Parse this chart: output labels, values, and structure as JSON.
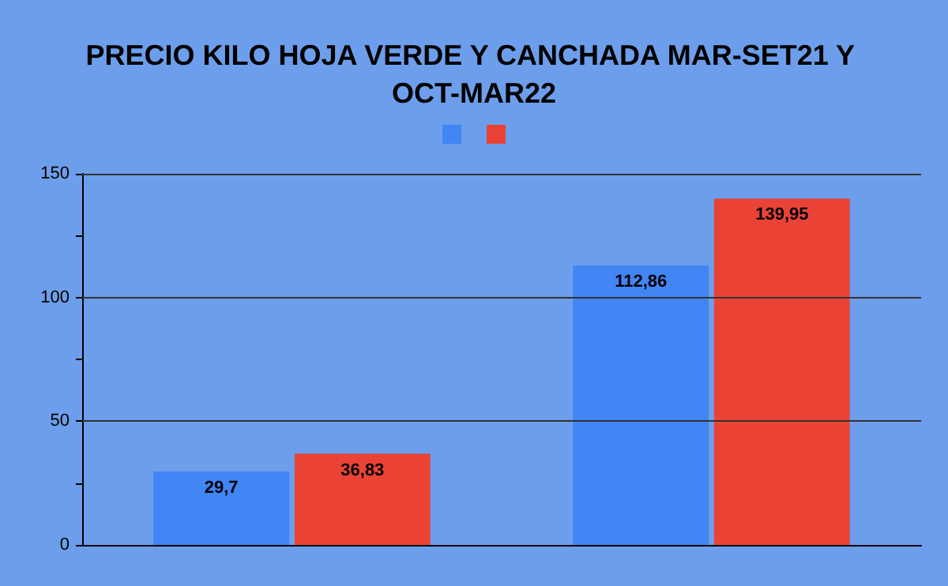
{
  "chart_data": {
    "type": "bar",
    "title": "PRECIO KILO HOJA VERDE Y CANCHADA MAR-SET21 Y OCT-MAR22",
    "categories": [
      null,
      null
    ],
    "series": [
      {
        "color": "#4285f4",
        "values": [
          29.7,
          112.86
        ],
        "value_labels": [
          "29,7",
          "112,86"
        ]
      },
      {
        "color": "#ea4335",
        "values": [
          36.83,
          139.95
        ],
        "value_labels": [
          "36,83",
          "139,95"
        ]
      }
    ],
    "ylim": [
      0,
      150
    ],
    "yticks": [
      0,
      {
        "value": 25,
        "label": null
      },
      50,
      {
        "value": 75,
        "label": null
      },
      100,
      {
        "value": 125,
        "label": null
      },
      150
    ],
    "grid": "y"
  }
}
